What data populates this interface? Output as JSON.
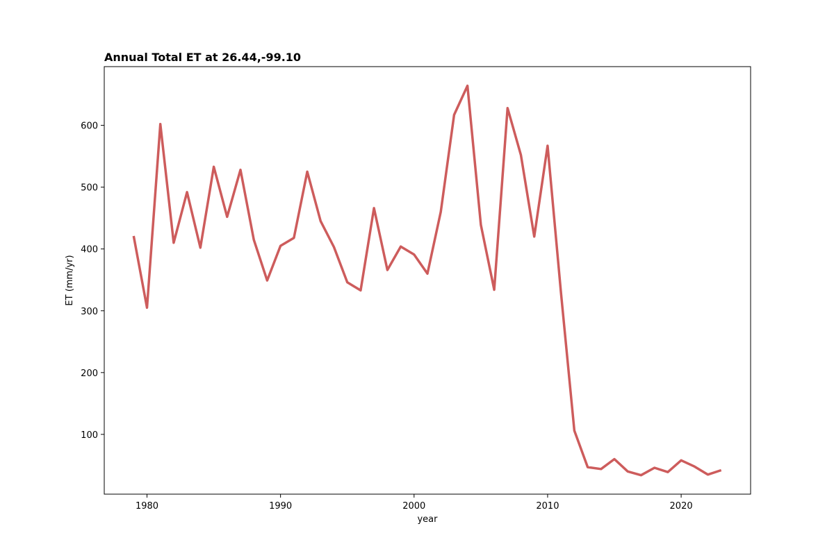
{
  "chart_data": {
    "type": "line",
    "title": "Annual Total ET at 26.44,-99.10",
    "xlabel": "year",
    "ylabel": "ET (mm/yr)",
    "xlim": [
      1976.8,
      2025.2
    ],
    "ylim": [
      3.3,
      695
    ],
    "xticks": [
      1980,
      1990,
      2000,
      2010,
      2020
    ],
    "yticks": [
      100,
      200,
      300,
      400,
      500,
      600
    ],
    "grid": false,
    "legend": "none",
    "line_color": "#cd5c5c",
    "series": [
      {
        "x": [
          1979,
          1980,
          1981,
          1982,
          1983,
          1984,
          1985,
          1986,
          1987,
          1988,
          1989,
          1990,
          1991,
          1992,
          1993,
          1994,
          1995,
          1996,
          1997,
          1998,
          1999,
          2000,
          2001,
          2002,
          2003,
          2004,
          2005,
          2006,
          2007,
          2008,
          2009,
          2010,
          2011,
          2012,
          2013,
          2014,
          2015,
          2016,
          2017,
          2018,
          2019,
          2020,
          2021,
          2022,
          2023
        ],
        "values": [
          421,
          305,
          602,
          410,
          492,
          402,
          533,
          452,
          528,
          415,
          349,
          405,
          418,
          525,
          445,
          403,
          346,
          333,
          466,
          366,
          404,
          391,
          360,
          460,
          617,
          664,
          439,
          334,
          628,
          552,
          420,
          567,
          330,
          106,
          47,
          44,
          60,
          40,
          34,
          46,
          39,
          58,
          48,
          35,
          42
        ]
      }
    ]
  }
}
